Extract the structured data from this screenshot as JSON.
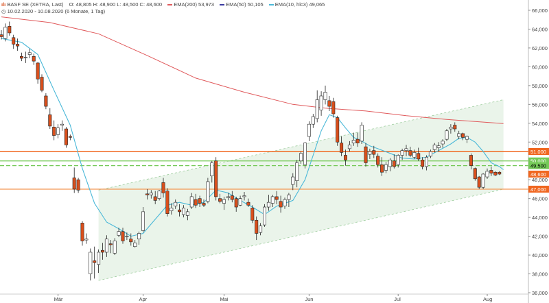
{
  "header": {
    "symbol": "BASF SE (XETRA, Last)",
    "ohlc": "O: 48,805  H: 48,900  L: 48,500  C: 48,600",
    "ema200": "EMA(200)  53,973",
    "ema50": "EMA(50)  50,105",
    "ema10": "EMA(10, hlc3)  49,065",
    "range": "10.02.2020 - 10.08.2020",
    "range_note": "(6 Monate, 1 Tag)"
  },
  "colors": {
    "up": "#ffffff",
    "down": "#d94f1c",
    "ema200": "#e0595b",
    "ema50": "#3a3aa0",
    "ema10": "#4ab8d8",
    "channel": "#e6f2e6",
    "resistance": "#f0661f",
    "support_green": "#74c957",
    "level_orange": "#f39b5a"
  },
  "chart_data": {
    "type": "line",
    "title": "BASF SE (XETRA, Last)",
    "xlabel": "",
    "ylabel": "",
    "ylim": [
      36,
      66
    ],
    "yticks": [
      "66,000",
      "64,000",
      "62,000",
      "60,000",
      "58,000",
      "56,000",
      "54,000",
      "52,000",
      "50,000",
      "48,000",
      "46,000",
      "44,000",
      "42,000",
      "40,000",
      "38,000",
      "36,000"
    ],
    "xticks": [
      {
        "label": "Mär",
        "index": 14
      },
      {
        "label": "Apr",
        "index": 35
      },
      {
        "label": "Mai",
        "index": 55
      },
      {
        "label": "Jun",
        "index": 76
      },
      {
        "label": "Jul",
        "index": 98
      },
      {
        "label": "Aug",
        "index": 120
      }
    ],
    "grid": false,
    "legend": "top-left",
    "candles": [
      [
        63.4,
        63.9,
        62.9,
        63.2
      ],
      [
        63.0,
        64.6,
        62.7,
        64.2
      ],
      [
        64.3,
        64.8,
        63.3,
        63.6
      ],
      [
        63.1,
        63.4,
        61.9,
        62.4
      ],
      [
        62.4,
        63.0,
        61.7,
        62.2
      ],
      [
        61.1,
        61.5,
        60.6,
        60.9
      ],
      [
        61.0,
        61.6,
        60.4,
        61.0
      ],
      [
        61.3,
        61.9,
        60.9,
        61.5
      ],
      [
        61.1,
        61.4,
        60.2,
        60.6
      ],
      [
        60.4,
        60.5,
        58.2,
        58.7
      ],
      [
        58.9,
        59.2,
        57.3,
        57.5
      ],
      [
        56.9,
        57.2,
        55.5,
        55.8
      ],
      [
        54.9,
        55.6,
        53.4,
        53.7
      ],
      [
        53.6,
        54.3,
        52.2,
        52.7
      ],
      [
        52.8,
        53.9,
        52.4,
        53.5
      ],
      [
        53.8,
        54.3,
        53.2,
        53.9
      ],
      [
        53.4,
        53.6,
        51.4,
        51.7
      ],
      [
        52.6,
        52.8,
        52.2,
        52.5
      ],
      [
        48.2,
        49.3,
        46.6,
        47.0
      ],
      [
        48.0,
        48.2,
        46.6,
        46.9
      ],
      [
        43.4,
        43.6,
        41.0,
        41.5
      ],
      [
        41.6,
        42.3,
        41.2,
        41.7
      ],
      [
        38.0,
        40.7,
        37.3,
        40.3
      ],
      [
        39.4,
        40.9,
        37.5,
        39.2
      ],
      [
        39.0,
        40.6,
        38.1,
        40.3
      ],
      [
        40.5,
        41.3,
        39.5,
        40.3
      ],
      [
        40.3,
        42.1,
        39.8,
        41.7
      ],
      [
        41.2,
        41.6,
        40.2,
        41.1
      ],
      [
        40.2,
        41.8,
        40.0,
        41.5
      ],
      [
        42.1,
        42.9,
        41.9,
        42.5
      ],
      [
        42.5,
        42.9,
        41.2,
        41.5
      ],
      [
        42.0,
        42.4,
        41.6,
        42.0
      ],
      [
        41.7,
        42.3,
        41.0,
        41.4
      ],
      [
        40.9,
        41.6,
        40.8,
        41.3
      ],
      [
        41.7,
        42.5,
        41.1,
        42.3
      ],
      [
        42.6,
        45.1,
        42.4,
        44.6
      ],
      [
        46.5,
        47.0,
        45.9,
        46.4
      ],
      [
        46.4,
        46.9,
        46.0,
        46.6
      ],
      [
        46.2,
        46.8,
        45.4,
        45.8
      ],
      [
        46.0,
        46.9,
        45.8,
        46.8
      ],
      [
        47.7,
        48.2,
        46.1,
        46.6
      ],
      [
        46.8,
        47.1,
        44.1,
        44.4
      ],
      [
        44.7,
        45.5,
        44.3,
        45.0
      ],
      [
        45.2,
        45.9,
        44.9,
        45.6
      ],
      [
        44.8,
        45.4,
        44.1,
        44.6
      ],
      [
        44.3,
        45.3,
        44.0,
        45.0
      ],
      [
        44.2,
        44.9,
        43.7,
        44.6
      ],
      [
        45.1,
        46.6,
        44.9,
        46.2
      ],
      [
        45.9,
        46.5,
        45.0,
        45.3
      ],
      [
        46.0,
        46.3,
        45.1,
        45.5
      ],
      [
        45.5,
        45.9,
        45.1,
        45.3
      ],
      [
        45.7,
        48.2,
        45.5,
        47.8
      ],
      [
        48.4,
        50.0,
        47.7,
        49.8
      ],
      [
        50.0,
        50.4,
        45.8,
        46.2
      ],
      [
        46.0,
        46.5,
        45.5,
        45.7
      ],
      [
        45.5,
        46.2,
        44.8,
        45.9
      ],
      [
        46.1,
        46.6,
        45.8,
        46.2
      ],
      [
        46.3,
        46.8,
        45.6,
        45.9
      ],
      [
        46.0,
        46.2,
        44.6,
        45.1
      ],
      [
        45.3,
        46.3,
        45.2,
        46.0
      ],
      [
        46.2,
        46.7,
        45.8,
        46.3
      ],
      [
        45.6,
        46.0,
        45.1,
        45.3
      ],
      [
        45.0,
        45.3,
        43.4,
        43.7
      ],
      [
        43.7,
        44.1,
        41.6,
        42.3
      ],
      [
        42.4,
        43.4,
        42.1,
        43.1
      ],
      [
        43.2,
        45.4,
        43.0,
        45.1
      ],
      [
        45.1,
        46.4,
        44.7,
        45.6
      ],
      [
        45.5,
        46.4,
        45.1,
        46.2
      ],
      [
        46.2,
        46.8,
        45.4,
        45.9
      ],
      [
        45.7,
        46.3,
        44.5,
        45.1
      ],
      [
        45.2,
        46.1,
        44.9,
        45.9
      ],
      [
        45.9,
        46.6,
        45.1,
        46.4
      ],
      [
        47.5,
        48.7,
        46.9,
        48.3
      ],
      [
        47.9,
        50.1,
        47.2,
        49.8
      ],
      [
        50.0,
        51.0,
        49.7,
        50.8
      ],
      [
        49.6,
        52.0,
        49.2,
        51.9
      ],
      [
        52.6,
        54.2,
        52.1,
        53.9
      ],
      [
        53.9,
        55.0,
        53.5,
        54.7
      ],
      [
        54.5,
        57.5,
        54.1,
        56.5
      ],
      [
        55.4,
        57.4,
        54.8,
        56.9
      ],
      [
        56.5,
        58.0,
        56.0,
        57.3
      ],
      [
        56.4,
        56.9,
        55.3,
        55.8
      ],
      [
        56.3,
        56.7,
        54.6,
        55.0
      ],
      [
        54.6,
        54.8,
        51.6,
        52.0
      ],
      [
        51.9,
        52.6,
        50.5,
        50.9
      ],
      [
        50.6,
        51.2,
        49.5,
        50.1
      ],
      [
        51.3,
        52.1,
        51.0,
        51.7
      ],
      [
        51.9,
        53.0,
        51.6,
        52.2
      ],
      [
        52.3,
        53.0,
        51.5,
        51.9
      ],
      [
        52.1,
        54.1,
        51.8,
        53.8
      ],
      [
        51.5,
        51.9,
        49.4,
        49.8
      ],
      [
        50.7,
        51.3,
        50.2,
        51.0
      ],
      [
        51.1,
        51.6,
        50.3,
        50.7
      ],
      [
        50.5,
        50.8,
        49.3,
        49.6
      ],
      [
        49.6,
        50.4,
        48.4,
        48.8
      ],
      [
        49.0,
        49.9,
        48.7,
        49.6
      ],
      [
        49.4,
        50.3,
        48.9,
        50.1
      ],
      [
        50.0,
        50.7,
        49.2,
        49.4
      ],
      [
        49.6,
        50.7,
        49.3,
        50.6
      ],
      [
        50.6,
        51.3,
        50.1,
        51.1
      ],
      [
        51.1,
        51.7,
        50.5,
        51.3
      ],
      [
        51.1,
        51.5,
        50.4,
        50.6
      ],
      [
        50.4,
        51.2,
        50.2,
        50.9
      ],
      [
        50.8,
        51.4,
        50.0,
        50.2
      ],
      [
        50.1,
        50.4,
        49.1,
        49.4
      ],
      [
        49.4,
        50.6,
        49.0,
        50.4
      ],
      [
        50.5,
        51.2,
        50.3,
        51.0
      ],
      [
        51.2,
        51.9,
        50.9,
        51.7
      ],
      [
        51.4,
        52.0,
        51.0,
        51.6
      ],
      [
        51.8,
        52.3,
        51.4,
        52.1
      ],
      [
        52.3,
        53.4,
        52.1,
        53.2
      ],
      [
        53.4,
        53.9,
        52.9,
        53.6
      ],
      [
        53.8,
        54.1,
        53.1,
        53.4
      ],
      [
        52.6,
        53.2,
        52.3,
        52.9
      ],
      [
        52.9,
        53.0,
        52.2,
        52.5
      ],
      [
        52.3,
        52.7,
        51.9,
        52.6
      ],
      [
        50.6,
        50.8,
        49.1,
        49.5
      ],
      [
        49.2,
        49.3,
        47.9,
        48.1
      ],
      [
        48.3,
        48.4,
        47.0,
        47.2
      ],
      [
        47.2,
        48.7,
        47.0,
        48.6
      ],
      [
        48.3,
        49.2,
        48.1,
        48.9
      ],
      [
        49.0,
        49.4,
        48.4,
        48.7
      ],
      [
        48.8,
        48.9,
        48.4,
        48.5
      ],
      [
        48.8,
        48.9,
        48.5,
        48.6
      ]
    ],
    "series": [
      {
        "name": "EMA(200)",
        "values": "ema200"
      },
      {
        "name": "EMA(50)",
        "values": "ema50"
      },
      {
        "name": "EMA(10, hlc3)",
        "values": "ema10"
      }
    ],
    "ema200": [
      [
        0,
        65.3
      ],
      [
        12,
        64.7
      ],
      [
        24,
        63.5
      ],
      [
        36,
        61.2
      ],
      [
        48,
        58.8
      ],
      [
        60,
        57.3
      ],
      [
        72,
        56.0
      ],
      [
        80,
        55.6
      ],
      [
        90,
        55.3
      ],
      [
        100,
        54.8
      ],
      [
        110,
        54.4
      ],
      [
        124,
        53.97
      ]
    ],
    "ema10": [
      [
        0,
        63.0
      ],
      [
        5,
        62.6
      ],
      [
        9,
        61.3
      ],
      [
        13,
        57.5
      ],
      [
        17,
        53.8
      ],
      [
        20,
        49.2
      ],
      [
        23,
        45.5
      ],
      [
        26,
        43.5
      ],
      [
        29,
        42.8
      ],
      [
        32,
        42.0
      ],
      [
        35,
        42.3
      ],
      [
        38,
        43.8
      ],
      [
        41,
        45.3
      ],
      [
        44,
        45.6
      ],
      [
        47,
        45.3
      ],
      [
        50,
        45.6
      ],
      [
        53,
        46.9
      ],
      [
        56,
        46.6
      ],
      [
        59,
        45.8
      ],
      [
        62,
        45.1
      ],
      [
        65,
        44.3
      ],
      [
        68,
        45.2
      ],
      [
        72,
        45.8
      ],
      [
        75,
        48.0
      ],
      [
        77,
        50.6
      ],
      [
        79,
        53.2
      ],
      [
        81,
        54.9
      ],
      [
        83,
        54.6
      ],
      [
        85,
        53.5
      ],
      [
        87,
        52.5
      ],
      [
        89,
        52.1
      ],
      [
        91,
        51.6
      ],
      [
        93,
        51.3
      ],
      [
        96,
        50.8
      ],
      [
        99,
        50.3
      ],
      [
        102,
        50.2
      ],
      [
        105,
        50.4
      ],
      [
        108,
        51.1
      ],
      [
        111,
        51.8
      ],
      [
        113,
        52.4
      ],
      [
        115,
        52.5
      ],
      [
        117,
        52.0
      ],
      [
        119,
        51.0
      ],
      [
        121,
        49.8
      ],
      [
        123,
        49.4
      ],
      [
        124,
        49.07
      ]
    ],
    "channel": {
      "lower": [
        [
          24,
          37.3
        ],
        [
          124,
          47.0
        ]
      ],
      "upper": [
        [
          24,
          46.9
        ],
        [
          124,
          56.5
        ]
      ]
    },
    "levels": [
      {
        "value": 51.0,
        "label": "51,000",
        "style": "resistance"
      },
      {
        "value": 50.0,
        "label": "50,000",
        "style": "support_green"
      },
      {
        "value": 49.5,
        "label": "49,500",
        "style": "support_green_dashed"
      },
      {
        "value": 47.0,
        "label": "47,000",
        "style": "level_orange"
      }
    ],
    "last": {
      "value": 48.6,
      "label": "48,600"
    }
  }
}
